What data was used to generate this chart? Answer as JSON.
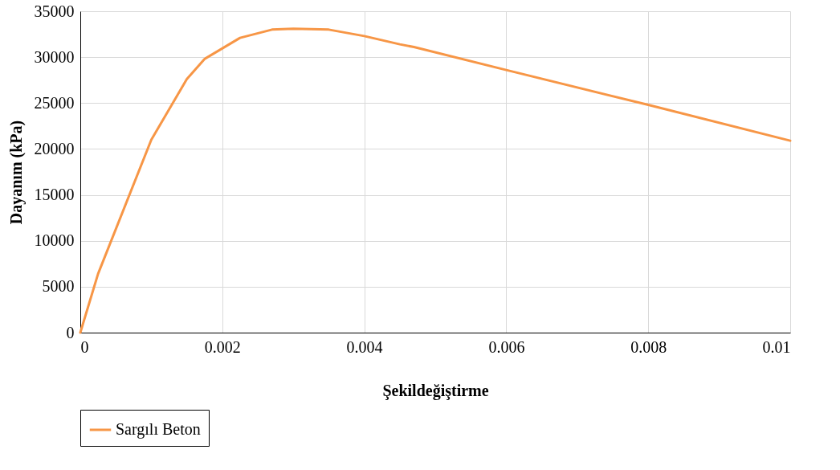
{
  "chart_data": {
    "type": "line",
    "xlabel": "Şekildeğiştirme",
    "ylabel": "Dayanım (kPa)",
    "x": [
      0,
      0.00025,
      0.001,
      0.0015,
      0.00175,
      0.00225,
      0.0027,
      0.003,
      0.0035,
      0.004,
      0.0045,
      0.0047,
      0.006,
      0.008,
      0.01
    ],
    "series": [
      {
        "name": "Sargılı Beton",
        "color": "#f79646",
        "values": [
          0,
          6400,
          21000,
          27600,
          29800,
          32100,
          33000,
          33100,
          33000,
          32300,
          31400,
          31100,
          28600,
          24800,
          20900
        ]
      }
    ],
    "xlim": [
      0,
      0.01
    ],
    "xticks": [
      0,
      0.002,
      0.004,
      0.006,
      0.008,
      0.01
    ],
    "ylim": [
      0,
      35000
    ],
    "yticks": [
      0,
      5000,
      10000,
      15000,
      20000,
      25000,
      30000,
      35000
    ],
    "grid": true,
    "legend": "bottom",
    "marker": "none",
    "line_style": "solid"
  }
}
